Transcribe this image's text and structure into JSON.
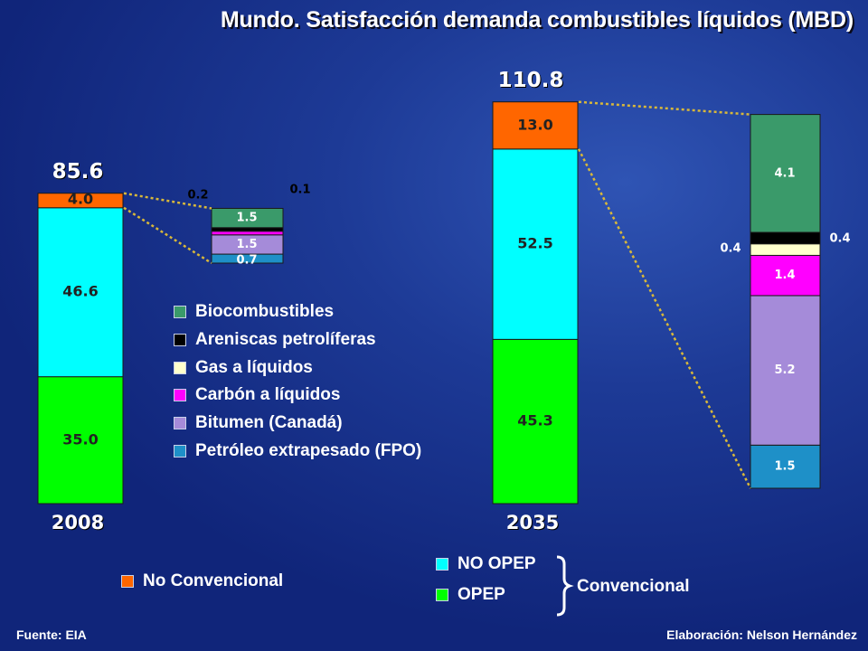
{
  "title": "Mundo. Satisfacción demanda combustibles líquidos (MBD)",
  "legend_types": [
    {
      "label": "Biocombustibles",
      "color": "#3a9a6a"
    },
    {
      "label": "Areniscas petrolíferas",
      "color": "#000000"
    },
    {
      "label": "Gas a líquidos",
      "color": "#ffffcc"
    },
    {
      "label": "Carbón a líquidos",
      "color": "#ff00ff"
    },
    {
      "label": "Bitumen (Canadá)",
      "color": "#a58bd9"
    },
    {
      "label": "Petróleo extrapesado (FPO)",
      "color": "#1e90c8"
    }
  ],
  "legend_main": {
    "no_convencional": "No Convencional",
    "no_opep": "NO OPEP",
    "opep": "OPEP",
    "convencional": "Convencional"
  },
  "colors": {
    "no_convencional": "#ff6600",
    "no_opep": "#00ffff",
    "opep": "#00ff00",
    "connector": "#d8b83a"
  },
  "source": "Fuente: EIA",
  "credit": "Elaboración: Nelson Hernández",
  "chart_data": [
    {
      "type": "bar",
      "stacked": true,
      "categories": [
        "2008",
        "2035"
      ],
      "totals": [
        85.6,
        110.8
      ],
      "series": [
        {
          "name": "OPEP",
          "values": [
            35.0,
            45.3
          ]
        },
        {
          "name": "NO OPEP",
          "values": [
            46.6,
            52.5
          ]
        },
        {
          "name": "No Convencional",
          "values": [
            4.0,
            13.0
          ]
        }
      ],
      "value_labels": {
        "totals": [
          "85.6",
          "110.8"
        ],
        "segments": [
          [
            "35.0",
            "46.6",
            "4.0"
          ],
          [
            "45.3",
            "52.5",
            "13.0"
          ]
        ]
      }
    },
    {
      "type": "bar",
      "stacked": true,
      "categories": [
        "2008"
      ],
      "series": [
        {
          "name": "Petróleo extrapesado (FPO)",
          "values": [
            0.7
          ]
        },
        {
          "name": "Bitumen (Canadá)",
          "values": [
            1.5
          ]
        },
        {
          "name": "Carbón a líquidos",
          "values": [
            0.2
          ]
        },
        {
          "name": "Gas a líquidos",
          "values": [
            0
          ]
        },
        {
          "name": "Areniscas petrolíferas",
          "values": [
            0.1
          ]
        },
        {
          "name": "Biocombustibles",
          "values": [
            1.5
          ]
        }
      ],
      "value_labels": [
        "0.7",
        "1.5",
        "0.2",
        "0.1",
        "1.5"
      ]
    },
    {
      "type": "bar",
      "stacked": true,
      "categories": [
        "2035"
      ],
      "series": [
        {
          "name": "Petróleo extrapesado (FPO)",
          "values": [
            1.5
          ]
        },
        {
          "name": "Bitumen (Canadá)",
          "values": [
            5.2
          ]
        },
        {
          "name": "Carbón a líquidos",
          "values": [
            1.4
          ]
        },
        {
          "name": "Gas a líquidos",
          "values": [
            0.4
          ]
        },
        {
          "name": "Areniscas petrolíferas",
          "values": [
            0.4
          ]
        },
        {
          "name": "Biocombustibles",
          "values": [
            4.1
          ]
        }
      ],
      "value_labels": [
        "1.5",
        "5.2",
        "1.4",
        "0.4",
        "0.4",
        "4.1"
      ]
    }
  ]
}
